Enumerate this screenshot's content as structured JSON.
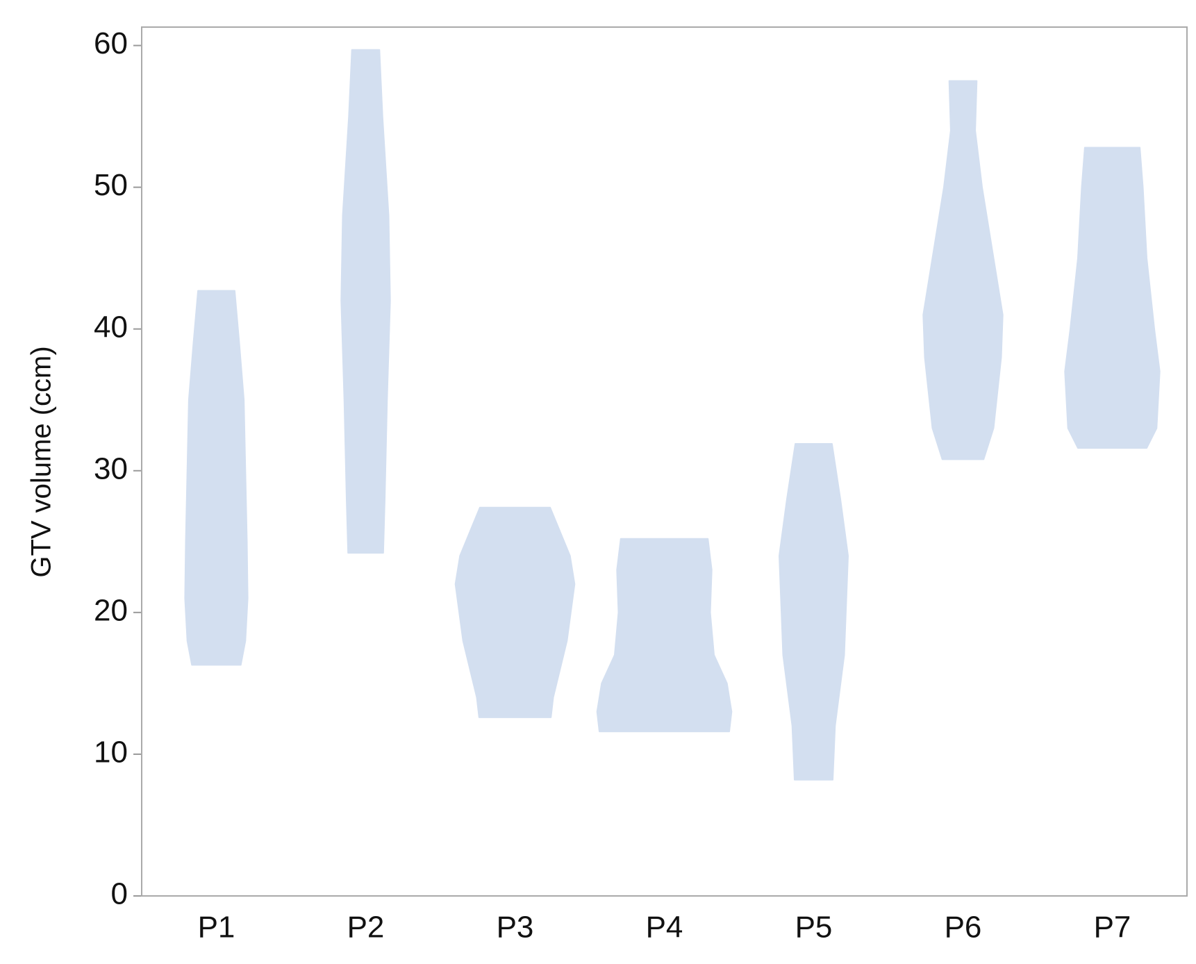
{
  "chart_data": {
    "type": "violin",
    "y_label": "GTV volume (ccm)",
    "categories": [
      "P1",
      "P2",
      "P3",
      "P4",
      "P5",
      "P6",
      "P7"
    ],
    "color": "#d3dff0",
    "ylim": [
      0,
      61.3
    ],
    "yticks": [
      0,
      10,
      20,
      30,
      40,
      50,
      60
    ],
    "violins": [
      {
        "y": [
          16.3,
          18,
          21,
          25,
          30,
          35,
          39,
          42.7
        ],
        "density": [
          0.32,
          0.38,
          0.41,
          0.4,
          0.38,
          0.36,
          0.3,
          0.24
        ]
      },
      {
        "y": [
          24.2,
          28,
          35,
          42,
          48,
          55,
          59.7
        ],
        "density": [
          0.23,
          0.25,
          0.28,
          0.32,
          0.3,
          0.22,
          0.18
        ]
      },
      {
        "y": [
          12.6,
          14,
          18,
          22,
          24,
          27.4
        ],
        "density": [
          0.47,
          0.5,
          0.68,
          0.78,
          0.72,
          0.46
        ]
      },
      {
        "y": [
          11.6,
          13,
          15,
          17,
          20,
          23,
          25.2
        ],
        "density": [
          0.85,
          0.88,
          0.82,
          0.65,
          0.6,
          0.62,
          0.57
        ]
      },
      {
        "y": [
          8.2,
          12,
          17,
          24,
          28,
          31.9
        ],
        "density": [
          0.25,
          0.28,
          0.4,
          0.45,
          0.35,
          0.24
        ]
      },
      {
        "y": [
          30.8,
          33,
          38,
          41,
          45,
          50,
          54,
          57.5
        ],
        "density": [
          0.27,
          0.4,
          0.5,
          0.52,
          0.4,
          0.25,
          0.16,
          0.18
        ]
      },
      {
        "y": [
          31.6,
          33,
          37,
          40,
          45,
          50,
          52.8
        ],
        "density": [
          0.45,
          0.58,
          0.62,
          0.55,
          0.45,
          0.4,
          0.36
        ]
      }
    ]
  }
}
